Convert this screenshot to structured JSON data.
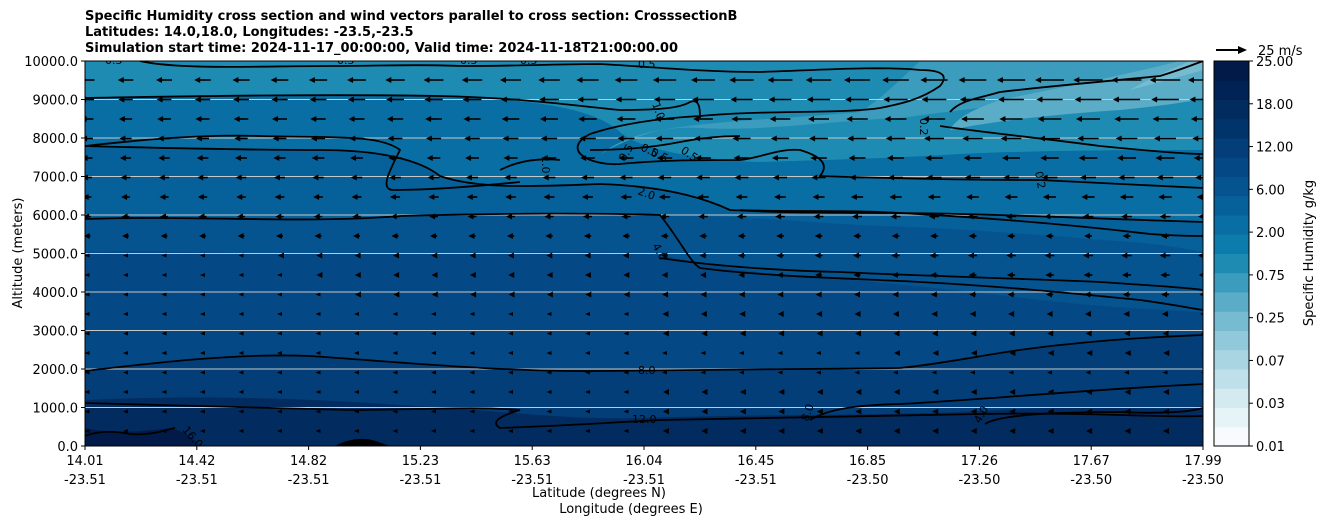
{
  "title": {
    "line1": "Specific Humidity cross section and wind vectors parallel to cross section: CrosssectionB",
    "line2": "Latitudes: 14.0,18.0, Longitudes: -23.5,-23.5",
    "line3": "Simulation start time: 2024-11-17_00:00:00, Valid time: 2024-11-18T21:00:00.00"
  },
  "chart_data": {
    "type": "heatmap",
    "ylabel": "Altitude (meters)",
    "xlabel_lat": "Latitude (degrees N)",
    "xlabel_lon": "Longitude (degrees E)",
    "ylim": [
      0,
      10000
    ],
    "y_ticks": [
      "0.0",
      "1000.0",
      "2000.0",
      "3000.0",
      "4000.0",
      "5000.0",
      "6000.0",
      "7000.0",
      "8000.0",
      "9000.0",
      "10000.0"
    ],
    "x_ticks": [
      {
        "lat": "14.01",
        "lon": "-23.51"
      },
      {
        "lat": "14.42",
        "lon": "-23.51"
      },
      {
        "lat": "14.82",
        "lon": "-23.51"
      },
      {
        "lat": "15.23",
        "lon": "-23.51"
      },
      {
        "lat": "15.63",
        "lon": "-23.51"
      },
      {
        "lat": "16.04",
        "lon": "-23.51"
      },
      {
        "lat": "16.45",
        "lon": "-23.51"
      },
      {
        "lat": "16.85",
        "lon": "-23.50"
      },
      {
        "lat": "17.26",
        "lon": "-23.50"
      },
      {
        "lat": "17.67",
        "lon": "-23.50"
      },
      {
        "lat": "17.99",
        "lon": "-23.50"
      }
    ],
    "colorbar": {
      "label": "Specific Humidity g/kg",
      "tick_labels": [
        "0.01",
        "0.03",
        "0.07",
        "0.25",
        "0.75",
        "2.00",
        "6.00",
        "12.00",
        "18.00",
        "25.00"
      ],
      "colors": [
        "#f7fbfd",
        "#e6f3f7",
        "#d3eaf1",
        "#bfe0ea",
        "#a9d5e3",
        "#91c9db",
        "#77bbd1",
        "#5aacc7",
        "#3b9cbd",
        "#1e8cb2",
        "#0b7cab",
        "#086ea3",
        "#06609a",
        "#055490",
        "#044985",
        "#033e79",
        "#02346c",
        "#022b60",
        "#012254",
        "#011a48"
      ]
    },
    "quiver_key": {
      "label": "25 m/s"
    },
    "contour_labels": [
      "0.5",
      "0.5",
      "0.5",
      "0.5",
      "0.5",
      "0.5",
      "1.0",
      "1.0",
      "0.5",
      "0.5",
      "0.5",
      "0.2",
      "0.2",
      "2.0",
      "4.0",
      "8.0",
      "12.0",
      "16.0",
      "8.0",
      "4.0"
    ],
    "grid": true
  }
}
